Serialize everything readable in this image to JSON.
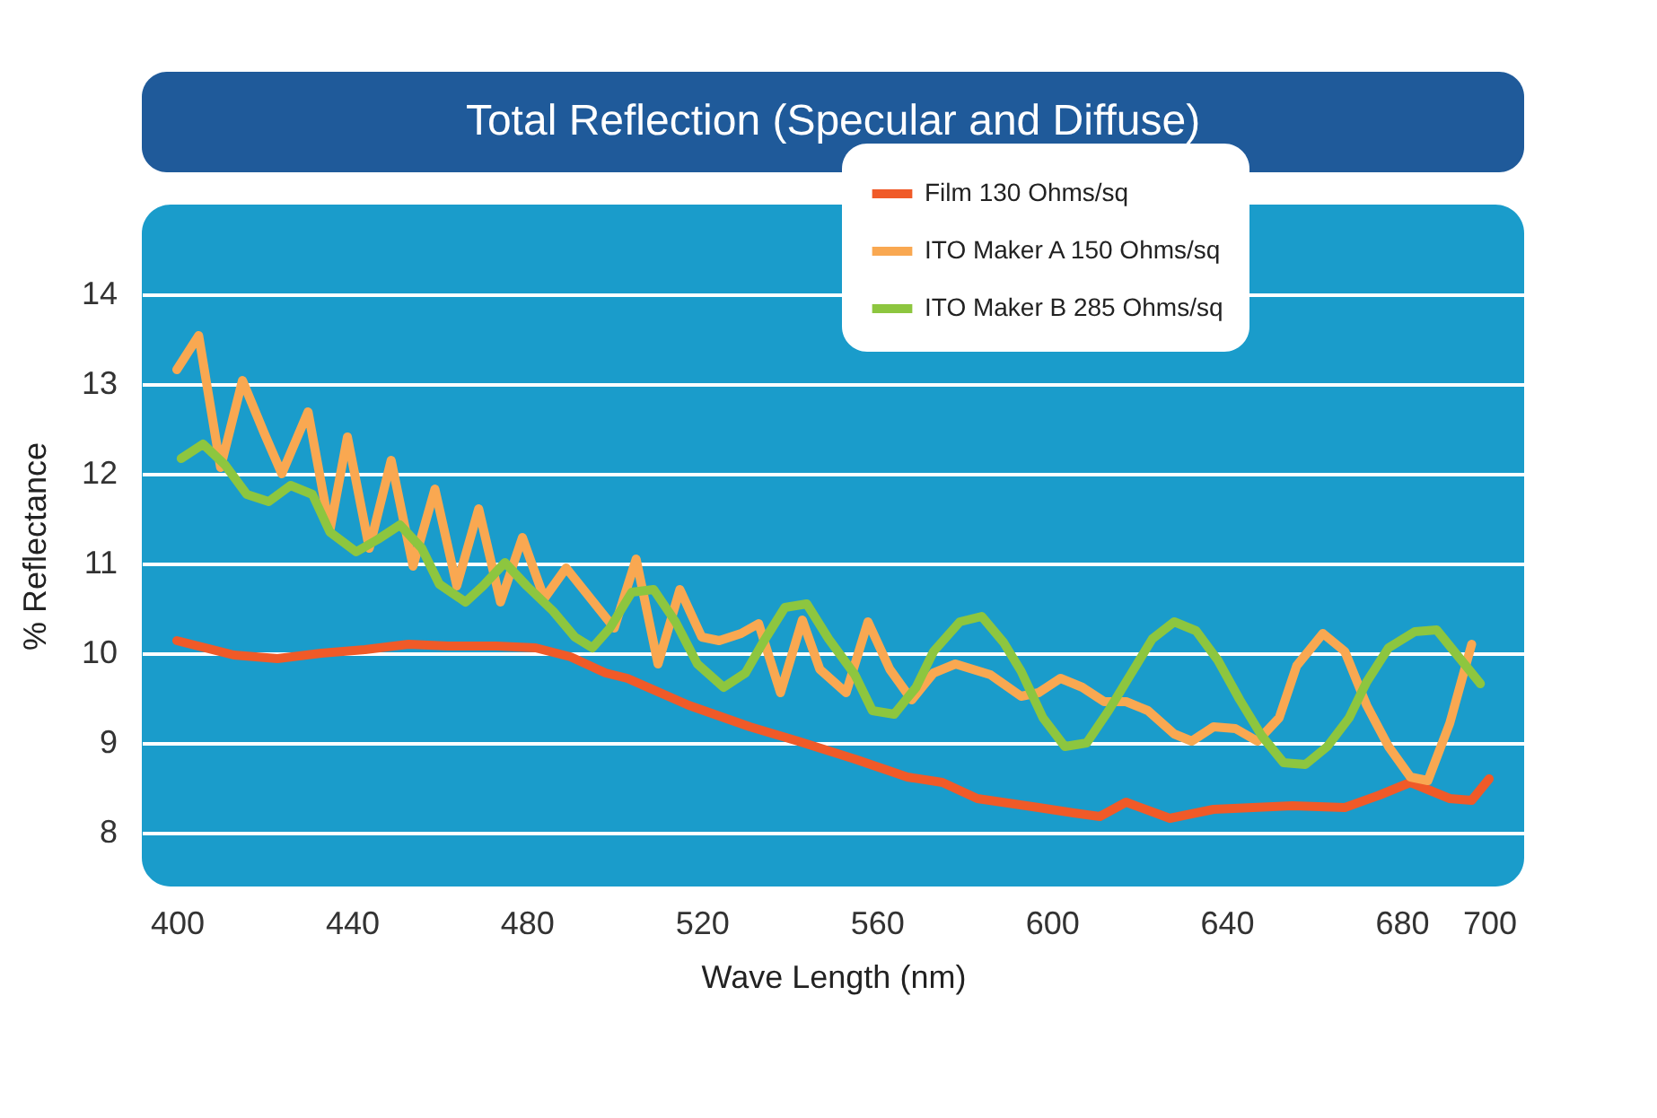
{
  "chart_data": {
    "type": "line",
    "title": "Total Reflection (Specular and Diffuse)",
    "xlabel": "Wave Length (nm)",
    "ylabel": "% Reflectance",
    "xlim": [
      392,
      708
    ],
    "ylim": [
      7.4,
      15
    ],
    "xticks": [
      400,
      440,
      480,
      520,
      560,
      600,
      640,
      680,
      700
    ],
    "yticks": [
      8,
      9,
      10,
      11,
      12,
      13,
      14
    ],
    "grid": "y",
    "legend": "top right",
    "line_style": "solid",
    "marker": "none",
    "series": [
      {
        "name": "Film 130 Ohms/sq",
        "color": "#f05a28",
        "x": [
          400,
          413,
          423,
          433,
          443,
          453,
          462,
          473,
          482,
          490,
          498,
          503,
          517,
          531,
          542,
          555,
          567,
          575,
          583,
          597,
          605,
          611,
          617,
          627,
          637,
          655,
          667,
          675,
          682,
          691,
          696,
          700
        ],
        "values": [
          10.14,
          9.98,
          9.94,
          10.0,
          10.04,
          10.1,
          10.08,
          10.08,
          10.06,
          9.96,
          9.78,
          9.72,
          9.42,
          9.18,
          9.02,
          8.82,
          8.62,
          8.56,
          8.38,
          8.28,
          8.22,
          8.18,
          8.34,
          8.16,
          8.26,
          8.3,
          8.28,
          8.42,
          8.56,
          8.38,
          8.36,
          8.6
        ]
      },
      {
        "name": "ITO Maker A 150 Ohms/sq",
        "color": "#f9a851",
        "x": [
          400,
          405,
          410,
          415,
          420,
          424,
          430,
          435,
          439,
          444,
          449,
          454,
          459,
          464,
          469,
          474,
          479,
          484,
          489,
          500,
          505,
          510,
          515,
          520,
          524,
          529,
          533,
          538,
          543,
          547,
          553,
          558,
          563,
          568,
          573,
          578,
          586,
          593,
          597,
          602,
          607,
          612,
          617,
          622,
          628,
          632,
          637,
          642,
          647,
          652,
          656,
          662,
          667,
          672,
          677,
          682,
          686,
          691,
          696
        ],
        "values": [
          13.16,
          13.54,
          12.07,
          13.04,
          12.45,
          12.0,
          12.69,
          11.37,
          12.41,
          11.17,
          12.15,
          10.97,
          11.83,
          10.75,
          11.61,
          10.57,
          11.29,
          10.61,
          10.95,
          10.28,
          11.05,
          9.88,
          10.71,
          10.18,
          10.14,
          10.22,
          10.33,
          9.56,
          10.37,
          9.82,
          9.56,
          10.35,
          9.82,
          9.48,
          9.78,
          9.88,
          9.76,
          9.52,
          9.56,
          9.72,
          9.62,
          9.46,
          9.46,
          9.36,
          9.1,
          9.02,
          9.18,
          9.16,
          9.02,
          9.28,
          9.86,
          10.22,
          10.02,
          9.42,
          8.96,
          8.62,
          8.58,
          9.22,
          10.1
        ]
      },
      {
        "name": "ITO Maker B 285 Ohms/sq",
        "color": "#8dc63f",
        "x": [
          401,
          406,
          411,
          416,
          421,
          426,
          431,
          435,
          441,
          446,
          451,
          456,
          460,
          466,
          470,
          475,
          480,
          486,
          491,
          495,
          499,
          504,
          509,
          514,
          519,
          525,
          530,
          534,
          539,
          544,
          549,
          555,
          559,
          564,
          569,
          573,
          579,
          584,
          589,
          593,
          598,
          603,
          608,
          613,
          618,
          623,
          628,
          633,
          638,
          643,
          648,
          653,
          658,
          663,
          668,
          672,
          677,
          683,
          688,
          692,
          698
        ],
        "values": [
          12.17,
          12.33,
          12.1,
          11.77,
          11.69,
          11.87,
          11.77,
          11.35,
          11.13,
          11.27,
          11.43,
          11.17,
          10.77,
          10.57,
          10.75,
          11.01,
          10.75,
          10.47,
          10.18,
          10.06,
          10.28,
          10.68,
          10.71,
          10.35,
          9.88,
          9.62,
          9.78,
          10.12,
          10.51,
          10.55,
          10.16,
          9.76,
          9.36,
          9.32,
          9.62,
          10.02,
          10.35,
          10.41,
          10.12,
          9.8,
          9.28,
          8.96,
          9.0,
          9.36,
          9.76,
          10.16,
          10.35,
          10.25,
          9.92,
          9.48,
          9.08,
          8.78,
          8.76,
          8.96,
          9.28,
          9.68,
          10.06,
          10.24,
          10.26,
          10.02,
          9.66
        ]
      }
    ]
  }
}
